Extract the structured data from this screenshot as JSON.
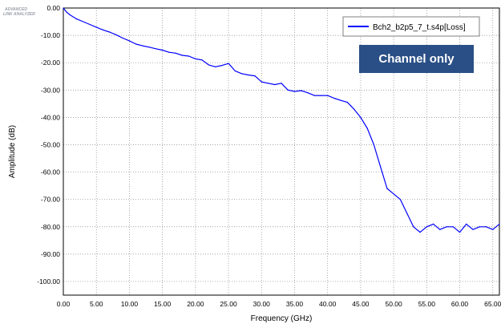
{
  "logo": {
    "line1": "ADVANCED",
    "line2": "LINK ANALYZER"
  },
  "annotation": "Channel only",
  "chart_data": {
    "type": "line",
    "xlabel": "Frequency (GHz)",
    "ylabel": "Amplitude (dB)",
    "xlim": [
      0,
      66
    ],
    "ylim": [
      -105,
      0
    ],
    "x_ticks": [
      "0.00",
      "5.00",
      "10.00",
      "15.00",
      "20.00",
      "25.00",
      "30.00",
      "35.00",
      "40.00",
      "45.00",
      "50.00",
      "55.00",
      "60.00",
      "65.00"
    ],
    "y_ticks": [
      "0.00",
      "-10.00",
      "-20.00",
      "-30.00",
      "-40.00",
      "-50.00",
      "-60.00",
      "-70.00",
      "-80.00",
      "-90.00",
      "-100.00"
    ],
    "grid": true,
    "legend_position": "top-right",
    "series": [
      {
        "name": "Bch2_b2p5_7_t.s4p[Loss]",
        "color": "#0000ff",
        "x": [
          0,
          0.5,
          1,
          2,
          3,
          4,
          5,
          6,
          7,
          8,
          9,
          10,
          11,
          12,
          13,
          14,
          15,
          16,
          17,
          18,
          19,
          20,
          21,
          22,
          23,
          24,
          25,
          26,
          27,
          28,
          29,
          30,
          31,
          32,
          33,
          34,
          35,
          36,
          37,
          38,
          39,
          40,
          41,
          42,
          43,
          44,
          45,
          46,
          47,
          48,
          49,
          50,
          51,
          52,
          53,
          54,
          55,
          56,
          57,
          58,
          59,
          60,
          61,
          62,
          63,
          64,
          65,
          66
        ],
        "y": [
          0,
          -1.5,
          -2.5,
          -4,
          -5,
          -6,
          -7,
          -8,
          -8.8,
          -9.8,
          -11,
          -12,
          -13.2,
          -13.8,
          -14.3,
          -14.9,
          -15.4,
          -16.2,
          -16.5,
          -17.3,
          -17.6,
          -18.6,
          -19,
          -20.8,
          -21.5,
          -21,
          -20.3,
          -23,
          -24,
          -24.5,
          -24.8,
          -27,
          -27.5,
          -28,
          -27.5,
          -30,
          -30.5,
          -30.2,
          -31,
          -32,
          -32,
          -32,
          -33,
          -33.8,
          -34.5,
          -37,
          -40,
          -44,
          -50,
          -58,
          -66,
          -68,
          -70,
          -75,
          -80,
          -82,
          -80,
          -79,
          -81,
          -80,
          -80,
          -82,
          -79,
          -81,
          -80,
          -80,
          -81,
          -79
        ]
      }
    ]
  }
}
